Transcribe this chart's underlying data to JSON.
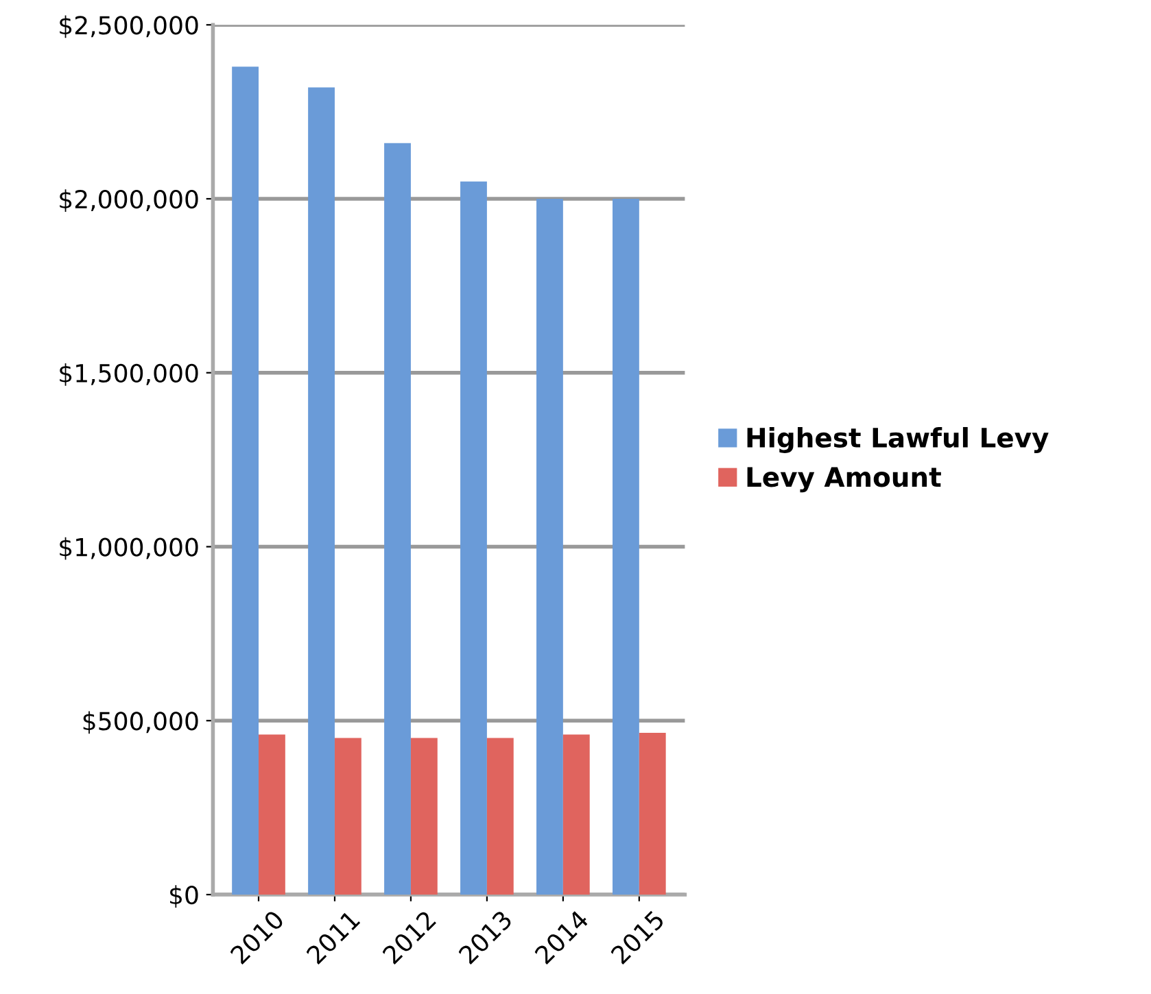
{
  "chart_data": {
    "type": "bar",
    "categories": [
      "2010",
      "2011",
      "2012",
      "2013",
      "2014",
      "2015"
    ],
    "series": [
      {
        "name": "Highest Lawful Levy",
        "color": "#6a9bd8",
        "values": [
          2380000,
          2320000,
          2160000,
          2050000,
          2000000,
          2000000
        ]
      },
      {
        "name": "Levy Amount",
        "color": "#e0645e",
        "values": [
          460000,
          450000,
          450000,
          450000,
          460000,
          465000
        ]
      }
    ],
    "ylim": [
      0,
      2500000
    ],
    "yticks": [
      {
        "value": 0,
        "label": "$0"
      },
      {
        "value": 500000,
        "label": "$500,000"
      },
      {
        "value": 1000000,
        "label": "$1,000,000"
      },
      {
        "value": 1500000,
        "label": "$1,500,000"
      },
      {
        "value": 2000000,
        "label": "$2,000,000"
      },
      {
        "value": 2500000,
        "label": "$2,500,000"
      }
    ],
    "grid": "y",
    "legend": "right"
  }
}
